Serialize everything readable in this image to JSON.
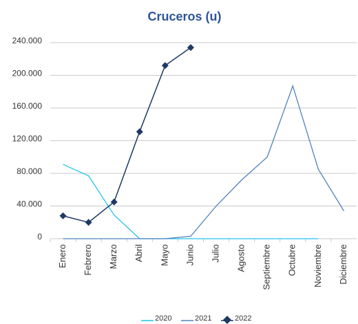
{
  "chart_data": {
    "type": "line",
    "title": "Cruceros (u)",
    "categories": [
      "Enero",
      "Febrero",
      "Marzo",
      "Abril",
      "Mayo",
      "Junio",
      "Julio",
      "Agosto",
      "Septiembre",
      "Octubre",
      "Noviembre",
      "Diciembre"
    ],
    "series": [
      {
        "name": "2020",
        "color": "#1fc3ec",
        "marker": false,
        "values": [
          91000,
          77000,
          29000,
          0,
          0,
          0,
          0,
          0,
          0,
          0,
          0,
          null
        ]
      },
      {
        "name": "2021",
        "color": "#4f81bd",
        "marker": false,
        "values": [
          0,
          0,
          0,
          0,
          0,
          3000,
          40000,
          72000,
          100000,
          187000,
          85000,
          34000
        ]
      },
      {
        "name": "2022",
        "color": "#1f3864",
        "marker": true,
        "values": [
          28000,
          20000,
          45000,
          131000,
          212000,
          234000,
          null,
          null,
          null,
          null,
          null,
          null
        ]
      }
    ],
    "ylim": [
      0,
      240000
    ],
    "yticks": [
      0,
      {
        "value": 40000,
        "label": "40.000"
      },
      {
        "value": 80000,
        "label": "80.000"
      },
      {
        "value": 120000,
        "label": "120.000"
      },
      {
        "value": 160000,
        "label": "160.000"
      },
      {
        "value": 200000,
        "label": "200.000"
      },
      {
        "value": 240000,
        "label": "240.000"
      }
    ],
    "grid": true
  }
}
